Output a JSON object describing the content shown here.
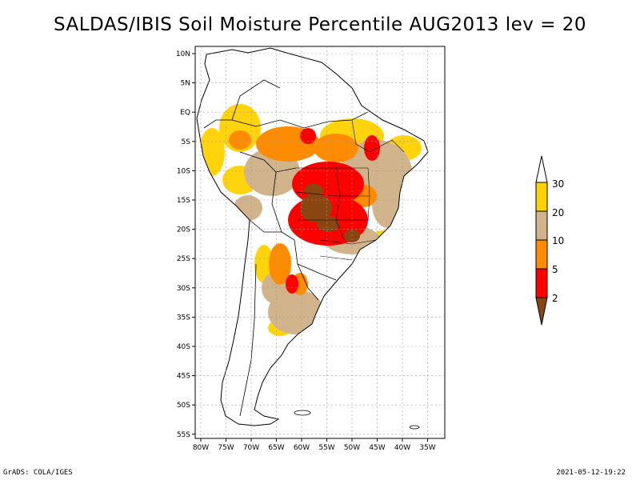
{
  "title": "SALDAS/IBIS Soil Moisture Percentile AUG2013 lev = 20",
  "footer": {
    "left": "GrADS: COLA/IGES",
    "right": "2021-05-12-19:22"
  },
  "axes": {
    "lon_ticks": [
      "80W",
      "75W",
      "70W",
      "65W",
      "60W",
      "55W",
      "50W",
      "45W",
      "40W",
      "35W"
    ],
    "lat_ticks": [
      "10N",
      "5N",
      "EQ",
      "5S",
      "10S",
      "15S",
      "20S",
      "25S",
      "30S",
      "35S",
      "40S",
      "45S",
      "50S",
      "55S"
    ]
  },
  "colorbar": {
    "labels": [
      "30",
      "20",
      "10",
      "5",
      "2"
    ],
    "colors": [
      "#ffffff",
      "#ffd200",
      "#d2b48c",
      "#ff8c00",
      "#ff0000",
      "#8b4513"
    ]
  },
  "chart_data": {
    "type": "heatmap",
    "title": "SALDAS/IBIS Soil Moisture Percentile AUG2013 lev = 20",
    "variable": "Soil Moisture Percentile",
    "period": "AUG2013",
    "level": 20,
    "lon_range": [
      -80,
      -32
    ],
    "lat_range": [
      -56,
      11
    ],
    "grid": true,
    "bins": [
      {
        "range": "<2",
        "color": "#8b4513"
      },
      {
        "range": "2-5",
        "color": "#ff0000"
      },
      {
        "range": "5-10",
        "color": "#ff8c00"
      },
      {
        "range": "10-20",
        "color": "#d2b48c"
      },
      {
        "range": "20-30",
        "color": "#ffd200"
      },
      {
        "range": ">30",
        "color": "#ffffff"
      }
    ]
  }
}
